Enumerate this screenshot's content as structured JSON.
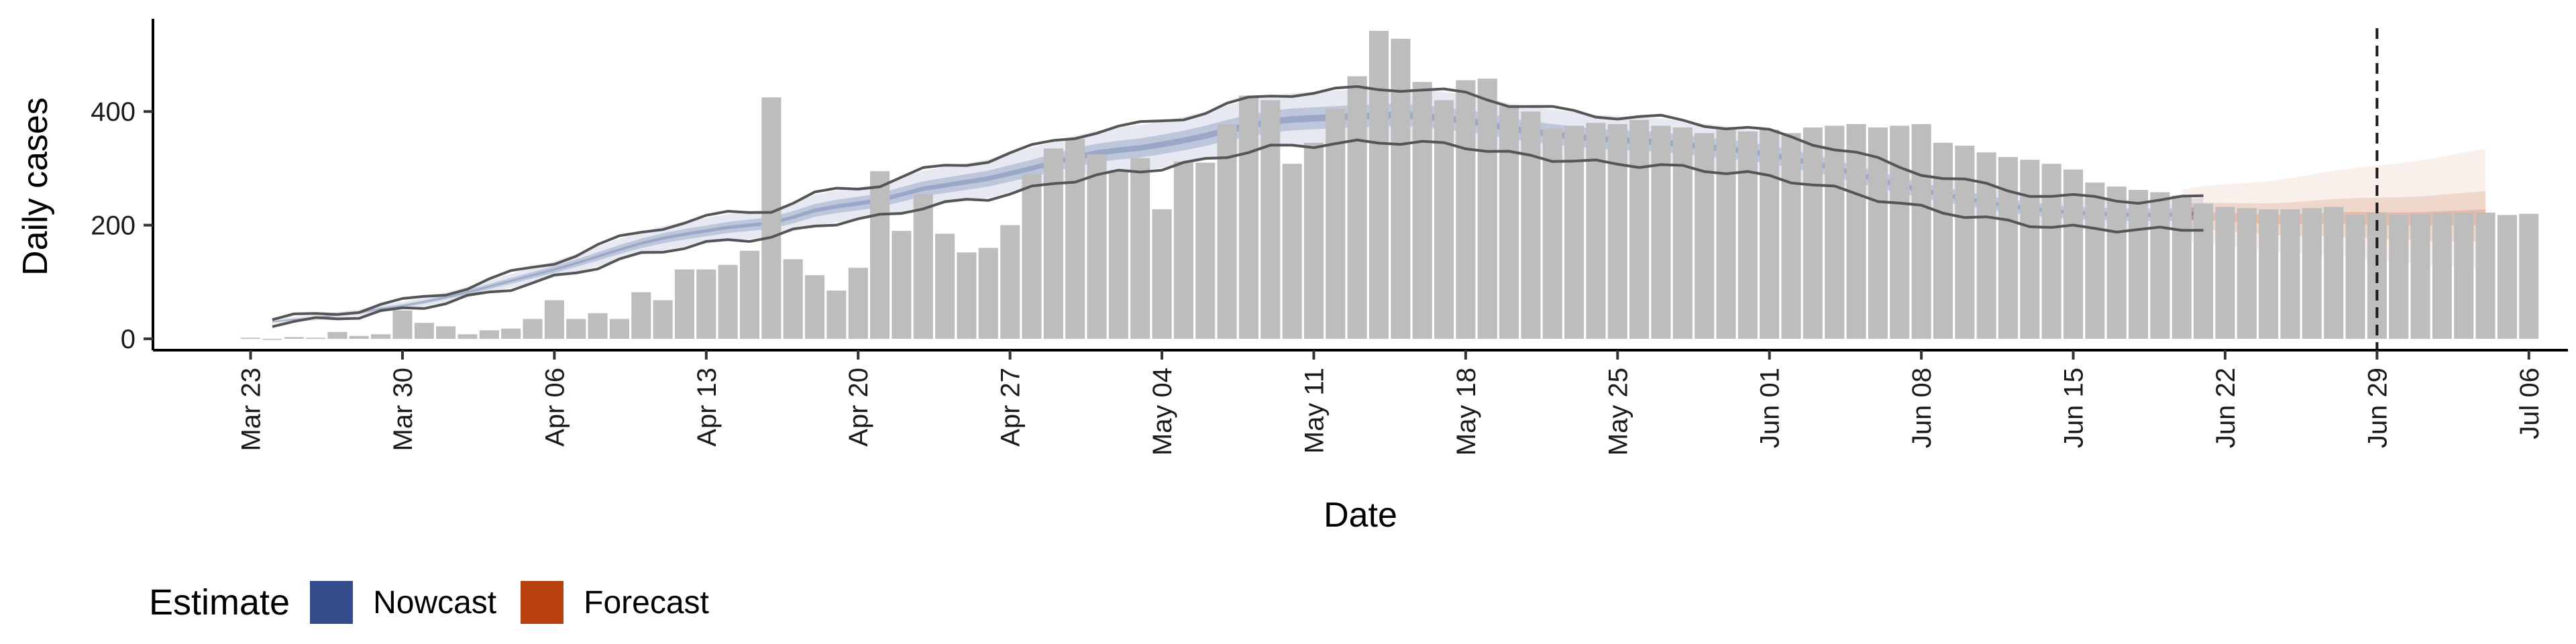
{
  "chart_data": {
    "type": "bar",
    "title": "",
    "xlabel": "Date",
    "ylabel": "Daily cases",
    "ylim": [
      -20,
      575
    ],
    "y_ticks": [
      0,
      200,
      400
    ],
    "x_ticks": [
      "Mar 23",
      "Mar 30",
      "Apr 06",
      "Apr 13",
      "Apr 20",
      "Apr 27",
      "May 04",
      "May 11",
      "May 18",
      "May 25",
      "Jun 01",
      "Jun 08",
      "Jun 15",
      "Jun 22",
      "Jun 29",
      "Jul 06"
    ],
    "x_range_day_index": [
      -4.5,
      106.8
    ],
    "grid": false,
    "vline_date_label": "Jun 29",
    "legend": {
      "title": "Estimate",
      "position": "bottom-left",
      "entries": [
        {
          "name": "Nowcast",
          "color": "#344b8b"
        },
        {
          "name": "Forecast",
          "color": "#b8400e"
        }
      ]
    },
    "colors": {
      "bars": "#bdbdbd",
      "nowcast_band": "#344b8b",
      "forecast_band": "#b8400e",
      "lines": "#555555"
    },
    "observed": {
      "start": "Mar 23",
      "values": [
        2,
        0,
        3,
        2,
        12,
        5,
        8,
        50,
        28,
        22,
        8,
        15,
        18,
        35,
        68,
        35,
        45,
        35,
        82,
        68,
        122,
        122,
        130,
        155,
        425,
        140,
        112,
        85,
        125,
        295,
        190,
        255,
        185,
        152,
        160,
        200,
        290,
        335,
        352,
        325,
        295,
        318,
        228,
        312,
        310,
        378,
        428,
        420,
        308,
        345,
        405,
        462,
        542,
        528,
        452,
        420,
        455,
        458,
        410,
        400,
        370,
        375,
        380,
        378,
        385,
        375,
        372,
        362,
        368,
        365,
        368,
        362,
        372,
        375,
        378,
        372,
        375,
        378,
        345,
        340,
        328,
        320,
        315,
        308,
        298,
        275,
        268,
        262,
        258,
        252,
        238,
        232,
        230,
        228,
        228,
        230,
        232,
        218,
        222,
        218,
        220,
        222,
        222,
        222,
        218,
        220
      ]
    },
    "nowcast": {
      "start": "Mar 24",
      "end": "Jun 19",
      "median_y": [
        30,
        34,
        37,
        42,
        46,
        53,
        58,
        65,
        73,
        82,
        92,
        102,
        112,
        122,
        133,
        145,
        157,
        168,
        177,
        184,
        190,
        196,
        200,
        204,
        214,
        226,
        233,
        238,
        244,
        254,
        264,
        270,
        276,
        282,
        291,
        300,
        310,
        319,
        327,
        332,
        336,
        342,
        349,
        357,
        367,
        375,
        382,
        386,
        388,
        390,
        392,
        393,
        394,
        392,
        388,
        384,
        378,
        370,
        365,
        360,
        356,
        352,
        350,
        348,
        346,
        342,
        338,
        334,
        330,
        324,
        317,
        309,
        300,
        290,
        280,
        270,
        262,
        254,
        247,
        240,
        234,
        229,
        225,
        222,
        220,
        219,
        218,
        218,
        219,
        222
      ]
    },
    "forecast": {
      "start": "Jun 20",
      "end": "Jul 04",
      "median_y": [
        215,
        216,
        214,
        212,
        210,
        210,
        211,
        212,
        212,
        211,
        210,
        210,
        211,
        212,
        213
      ]
    }
  }
}
